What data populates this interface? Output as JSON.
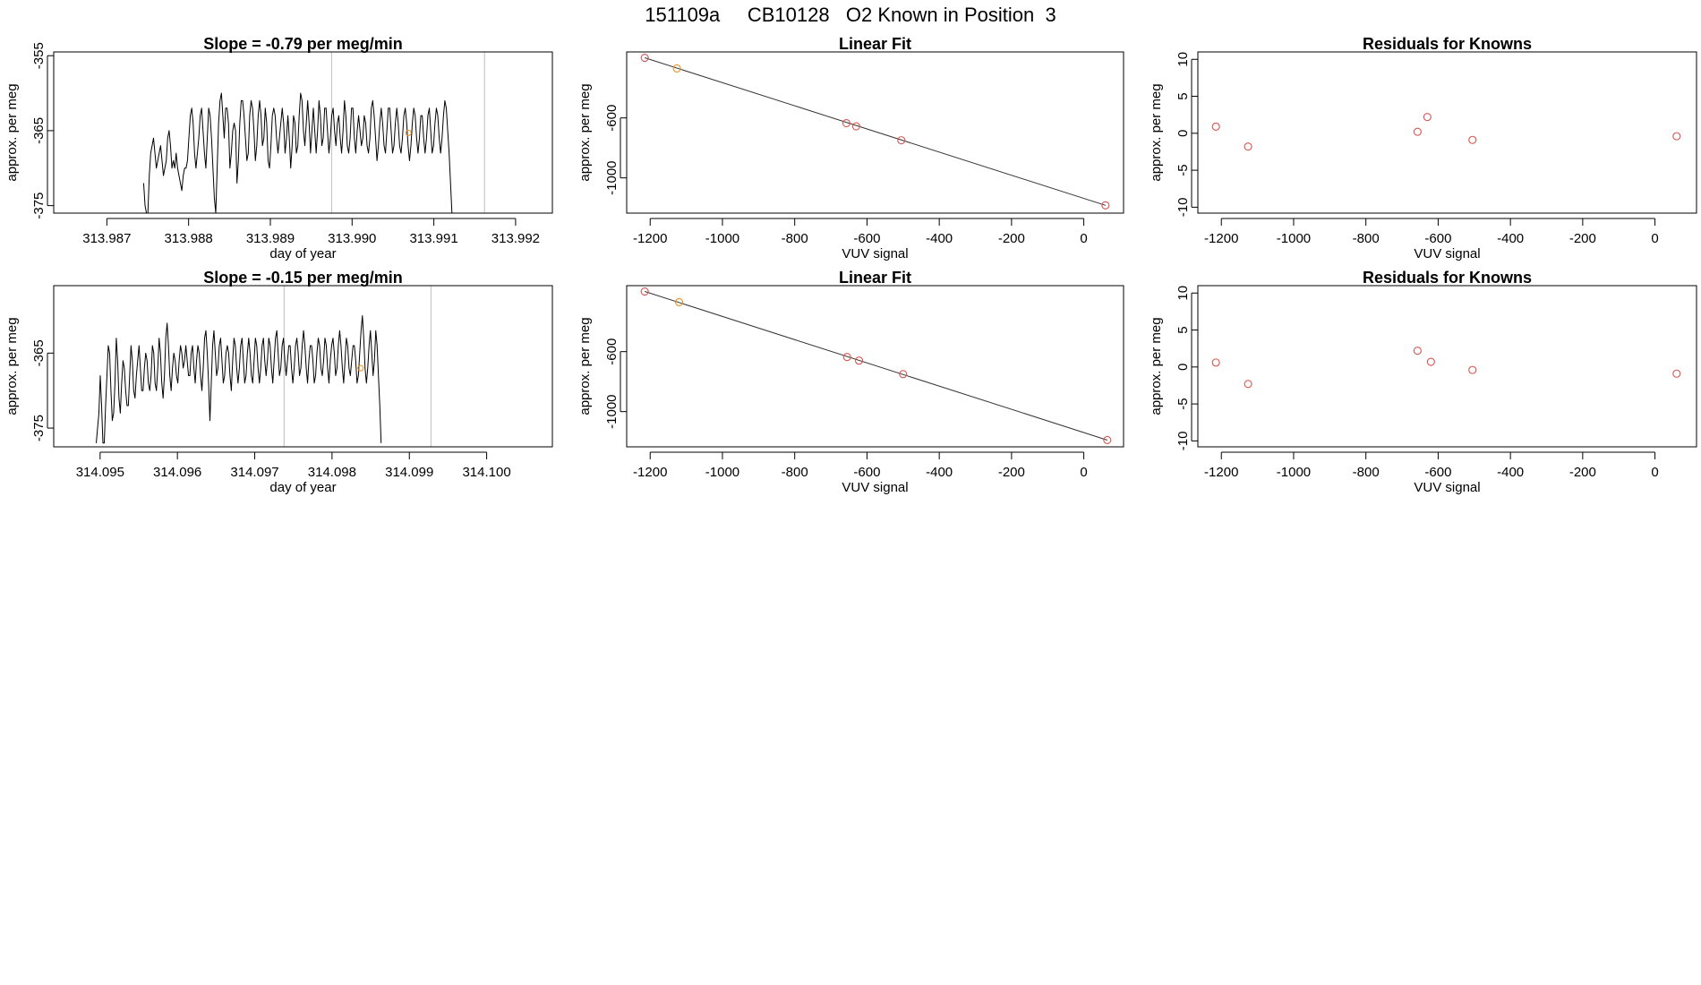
{
  "page": {
    "title": "151109a     CB10128   O2 Known in Position  3"
  },
  "colors": {
    "trace": "#000000",
    "point": "#d9534f",
    "highlight": "#e8901f",
    "vline": "#c8c8c8",
    "frame": "#000000"
  },
  "chart_data": [
    {
      "type": "line",
      "title": "Slope =  -0.79  per meg/min",
      "xlabel": "day of year",
      "ylabel": "approx. per meg",
      "xlim": [
        313.98635,
        313.99245
      ],
      "ylim": [
        -376,
        -354.5
      ],
      "xticks": [
        "313.987",
        "313.988",
        "313.989",
        "313.990",
        "313.991",
        "313.992"
      ],
      "yticks": [
        "-355",
        "-365",
        "-375"
      ],
      "vlines": [
        313.98975,
        313.99162
      ],
      "highlight_point": {
        "x": 313.99069,
        "y": -365.3
      },
      "x_start": 313.98745,
      "x_step": 1.73e-05,
      "y": [
        -372,
        -375,
        -376,
        -376,
        -371,
        -368,
        -367,
        -366,
        -368,
        -370,
        -369,
        -368,
        -367,
        -369,
        -371,
        -370,
        -369,
        -366,
        -365,
        -367,
        -370,
        -369,
        -370,
        -368,
        -370,
        -371,
        -372,
        -373,
        -371,
        -370,
        -370,
        -369,
        -366,
        -363,
        -362,
        -364,
        -368,
        -370,
        -368,
        -366,
        -363,
        -362,
        -365,
        -368,
        -370,
        -366,
        -362,
        -363,
        -366,
        -370,
        -374,
        -376,
        -370,
        -364,
        -361,
        -360,
        -363,
        -366,
        -362,
        -362,
        -364,
        -370,
        -368,
        -365,
        -364,
        -365,
        -372,
        -369,
        -364,
        -361,
        -361,
        -363,
        -366,
        -369,
        -368,
        -363,
        -361,
        -362,
        -365,
        -369,
        -367,
        -363,
        -361,
        -363,
        -367,
        -366,
        -362,
        -364,
        -369,
        -370,
        -367,
        -363,
        -362,
        -363,
        -366,
        -368,
        -366,
        -364,
        -362,
        -364,
        -368,
        -366,
        -363,
        -366,
        -370,
        -367,
        -363,
        -364,
        -368,
        -367,
        -363,
        -360,
        -361,
        -365,
        -367,
        -364,
        -361,
        -364,
        -368,
        -365,
        -362,
        -365,
        -368,
        -365,
        -361,
        -363,
        -367,
        -366,
        -362,
        -362,
        -365,
        -368,
        -366,
        -363,
        -362,
        -365,
        -367,
        -364,
        -363,
        -366,
        -368,
        -365,
        -361,
        -363,
        -367,
        -368,
        -366,
        -362,
        -362,
        -366,
        -368,
        -365,
        -363,
        -365,
        -367,
        -366,
        -363,
        -364,
        -367,
        -368,
        -366,
        -362,
        -361,
        -363,
        -366,
        -369,
        -367,
        -364,
        -362,
        -364,
        -367,
        -368,
        -365,
        -362,
        -362,
        -365,
        -368,
        -367,
        -364,
        -362,
        -364,
        -367,
        -368,
        -366,
        -363,
        -362,
        -364,
        -367,
        -369,
        -367,
        -364,
        -362,
        -363,
        -366,
        -368,
        -366,
        -363,
        -363,
        -366,
        -368,
        -366,
        -363,
        -362,
        -365,
        -368,
        -367,
        -364,
        -362,
        -363,
        -366,
        -368,
        -366,
        -363,
        -361,
        -362,
        -365,
        -368,
        -372,
        -376
      ]
    },
    {
      "type": "scatter",
      "title": "Linear Fit",
      "xlabel": "VUV signal",
      "ylabel": "approx. per meg",
      "xlim": [
        -1265,
        110
      ],
      "ylim": [
        -1235,
        -160
      ],
      "xticks": [
        "-1200",
        "-1000",
        "-800",
        "-600",
        "-400",
        "-200",
        "0"
      ],
      "yticks": [
        "-600",
        "-1000"
      ],
      "fit_line": {
        "x": [
          -1215,
          60
        ],
        "y": [
          -199,
          -1183
        ]
      },
      "points": {
        "x": [
          -1215,
          -1126,
          -657,
          -630,
          -505,
          60
        ],
        "y": [
          -199,
          -270,
          -635,
          -656,
          -749,
          -1183
        ],
        "colors": [
          "point",
          "highlight",
          "point",
          "point",
          "point",
          "point"
        ]
      }
    },
    {
      "type": "scatter",
      "title": "Residuals for Knowns",
      "xlabel": "VUV signal",
      "ylabel": "approx. per meg",
      "xlim": [
        -1265,
        115
      ],
      "ylim": [
        -10.8,
        11
      ],
      "xticks": [
        "-1200",
        "-1000",
        "-800",
        "-600",
        "-400",
        "-200",
        "0"
      ],
      "yticks": [
        "10",
        "5",
        "0",
        "-5",
        "-10"
      ],
      "points": {
        "x": [
          -1215,
          -1126,
          -657,
          -630,
          -505,
          60
        ],
        "y": [
          0.9,
          -1.8,
          0.2,
          2.2,
          -0.9,
          -0.4
        ],
        "colors": [
          "point",
          "point",
          "point",
          "point",
          "point",
          "point"
        ]
      }
    },
    {
      "type": "line",
      "title": "Slope =  -0.15  per meg/min",
      "xlabel": "day of year",
      "ylabel": "approx. per meg",
      "xlim": [
        314.0944,
        314.10085
      ],
      "ylim": [
        -377.5,
        -356
      ],
      "xticks": [
        "314.095",
        "314.096",
        "314.097",
        "314.098",
        "314.099",
        "314.100"
      ],
      "yticks": [
        "-365",
        "-375"
      ],
      "vlines": [
        314.09738,
        314.09928
      ],
      "highlight_point": {
        "x": 314.09837,
        "y": -367
      },
      "x_start": 314.09495,
      "x_step": 1.73e-05,
      "y": [
        -377,
        -375,
        -373,
        -368,
        -372,
        -377,
        -377,
        -372,
        -368,
        -364,
        -365,
        -370,
        -374,
        -373,
        -369,
        -363,
        -366,
        -371,
        -373,
        -369,
        -366,
        -367,
        -370,
        -372,
        -372,
        -368,
        -364,
        -366,
        -370,
        -371,
        -368,
        -366,
        -364,
        -367,
        -370,
        -370,
        -367,
        -365,
        -366,
        -369,
        -370,
        -368,
        -364,
        -365,
        -369,
        -370,
        -367,
        -363,
        -365,
        -369,
        -371,
        -368,
        -363,
        -361,
        -364,
        -368,
        -370,
        -367,
        -365,
        -366,
        -368,
        -369,
        -366,
        -364,
        -365,
        -367,
        -366,
        -364,
        -366,
        -368,
        -368,
        -365,
        -364,
        -367,
        -369,
        -366,
        -364,
        -365,
        -368,
        -370,
        -367,
        -363,
        -362,
        -365,
        -369,
        -374,
        -369,
        -364,
        -362,
        -365,
        -368,
        -367,
        -364,
        -363,
        -366,
        -369,
        -368,
        -365,
        -364,
        -365,
        -368,
        -370,
        -366,
        -363,
        -364,
        -367,
        -369,
        -367,
        -364,
        -363,
        -366,
        -369,
        -368,
        -365,
        -363,
        -365,
        -368,
        -369,
        -366,
        -363,
        -364,
        -367,
        -369,
        -367,
        -364,
        -363,
        -366,
        -368,
        -366,
        -363,
        -364,
        -367,
        -369,
        -366,
        -363,
        -362,
        -365,
        -368,
        -367,
        -364,
        -363,
        -366,
        -368,
        -366,
        -364,
        -364,
        -367,
        -369,
        -367,
        -364,
        -363,
        -365,
        -368,
        -367,
        -364,
        -362,
        -364,
        -367,
        -369,
        -366,
        -364,
        -364,
        -366,
        -369,
        -368,
        -365,
        -363,
        -364,
        -367,
        -368,
        -366,
        -363,
        -364,
        -367,
        -369,
        -366,
        -364,
        -363,
        -365,
        -368,
        -367,
        -364,
        -362,
        -364,
        -367,
        -369,
        -366,
        -363,
        -364,
        -367,
        -368,
        -366,
        -364,
        -364,
        -366,
        -369,
        -368,
        -365,
        -362,
        -360,
        -363,
        -367,
        -369,
        -367,
        -364,
        -362,
        -365,
        -368,
        -366,
        -362,
        -364,
        -368,
        -372,
        -377
      ]
    },
    {
      "type": "scatter",
      "title": "Linear Fit",
      "xlabel": "VUV signal",
      "ylabel": "approx. per meg",
      "xlim": [
        -1265,
        110
      ],
      "ylim": [
        -1235,
        -160
      ],
      "xticks": [
        "-1200",
        "-1000",
        "-800",
        "-600",
        "-400",
        "-200",
        "0"
      ],
      "yticks": [
        "-600",
        "-1000"
      ],
      "fit_line": {
        "x": [
          -1215,
          65
        ],
        "y": [
          -199,
          -1190
        ]
      },
      "points": {
        "x": [
          -1215,
          -1120,
          -655,
          -622,
          -500,
          65
        ],
        "y": [
          -199,
          -270,
          -636,
          -660,
          -750,
          -1190
        ],
        "colors": [
          "point",
          "highlight",
          "point",
          "point",
          "point",
          "point"
        ]
      }
    },
    {
      "type": "scatter",
      "title": "Residuals for Knowns",
      "xlabel": "VUV signal",
      "ylabel": "approx. per meg",
      "xlim": [
        -1265,
        115
      ],
      "ylim": [
        -10.8,
        11
      ],
      "xticks": [
        "-1200",
        "-1000",
        "-800",
        "-600",
        "-400",
        "-200",
        "0"
      ],
      "yticks": [
        "10",
        "5",
        "0",
        "-5",
        "-10"
      ],
      "points": {
        "x": [
          -1215,
          -1126,
          -657,
          -620,
          -505,
          60
        ],
        "y": [
          0.6,
          -2.3,
          2.2,
          0.7,
          -0.4,
          -0.9
        ],
        "colors": [
          "point",
          "point",
          "point",
          "point",
          "point",
          "point"
        ]
      }
    }
  ]
}
